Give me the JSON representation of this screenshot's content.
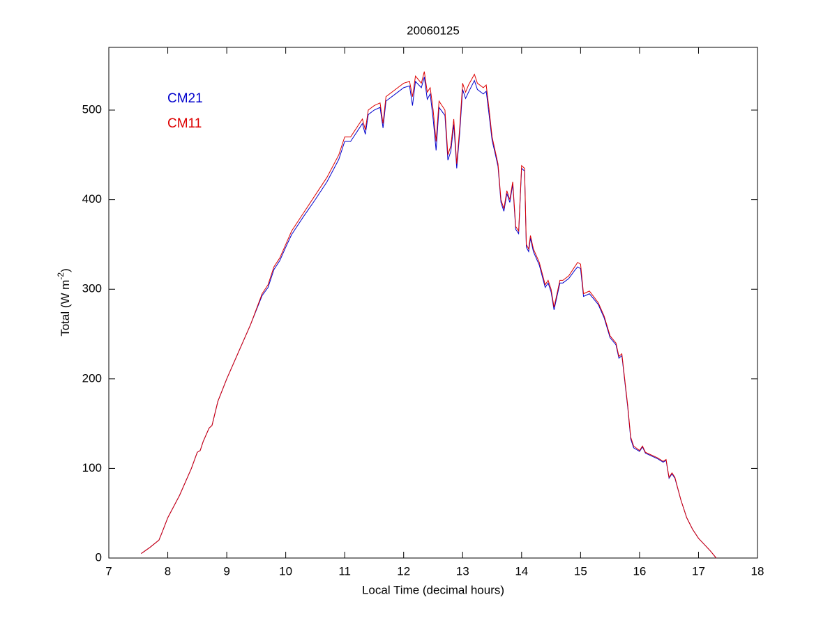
{
  "chart_data": {
    "type": "line",
    "title": "20060125",
    "xlabel": "Local Time (decimal hours)",
    "ylabel_parts": [
      "Total (W m",
      "-2",
      ")"
    ],
    "x": [
      7.55,
      7.7,
      7.85,
      7.9,
      8.0,
      8.2,
      8.4,
      8.5,
      8.55,
      8.6,
      8.7,
      8.75,
      8.85,
      9.0,
      9.2,
      9.4,
      9.6,
      9.7,
      9.8,
      9.9,
      10.0,
      10.1,
      10.3,
      10.5,
      10.7,
      10.9,
      11.0,
      11.1,
      11.2,
      11.3,
      11.35,
      11.4,
      11.5,
      11.6,
      11.65,
      11.7,
      11.9,
      12.0,
      12.1,
      12.15,
      12.2,
      12.3,
      12.35,
      12.4,
      12.45,
      12.5,
      12.55,
      12.6,
      12.7,
      12.75,
      12.8,
      12.85,
      12.9,
      12.95,
      13.0,
      13.05,
      13.1,
      13.2,
      13.25,
      13.35,
      13.4,
      13.45,
      13.5,
      13.55,
      13.6,
      13.65,
      13.7,
      13.75,
      13.8,
      13.85,
      13.9,
      13.95,
      14.0,
      14.05,
      14.08,
      14.12,
      14.15,
      14.2,
      14.3,
      14.4,
      14.45,
      14.5,
      14.55,
      14.65,
      14.7,
      14.8,
      14.9,
      14.95,
      15.0,
      15.05,
      15.15,
      15.3,
      15.4,
      15.5,
      15.6,
      15.65,
      15.7,
      15.8,
      15.85,
      15.9,
      16.0,
      16.05,
      16.1,
      16.2,
      16.3,
      16.4,
      16.45,
      16.5,
      16.55,
      16.6,
      16.7,
      16.8,
      16.9,
      17.0,
      17.1,
      17.2,
      17.3
    ],
    "series": [
      {
        "name": "CM21",
        "color": "#0000cc",
        "values": [
          5,
          12,
          20,
          28,
          45,
          70,
          100,
          118,
          120,
          130,
          145,
          148,
          175,
          200,
          230,
          260,
          293,
          302,
          322,
          332,
          347,
          361,
          381,
          400,
          420,
          445,
          465,
          465,
          475,
          485,
          473,
          495,
          500,
          503,
          480,
          510,
          520,
          525,
          527,
          505,
          532,
          525,
          537,
          512,
          518,
          490,
          455,
          503,
          494,
          444,
          454,
          484,
          435,
          474,
          523,
          513,
          520,
          533,
          523,
          518,
          521,
          494,
          466,
          452,
          437,
          397,
          387,
          407,
          397,
          417,
          367,
          362,
          435,
          432,
          347,
          342,
          357,
          342,
          327,
          302,
          307,
          297,
          277,
          307,
          307,
          312,
          321,
          325,
          323,
          292,
          295,
          283,
          268,
          246,
          238,
          223,
          226,
          168,
          133,
          123,
          119,
          124,
          117,
          114,
          111,
          107,
          109,
          89,
          94,
          89,
          65,
          45,
          32,
          22,
          15,
          8,
          0
        ]
      },
      {
        "name": "CM11",
        "color": "#dd0000",
        "values": [
          5,
          12,
          20,
          28,
          45,
          70,
          100,
          118,
          120,
          130,
          145,
          148,
          175,
          200,
          230,
          260,
          295,
          305,
          325,
          335,
          350,
          365,
          385,
          405,
          425,
          450,
          470,
          470,
          480,
          490,
          478,
          500,
          505,
          508,
          485,
          515,
          525,
          530,
          532,
          515,
          538,
          530,
          543,
          520,
          525,
          500,
          465,
          510,
          500,
          450,
          460,
          490,
          440,
          480,
          530,
          520,
          528,
          540,
          530,
          525,
          528,
          500,
          470,
          455,
          440,
          400,
          390,
          410,
          400,
          420,
          370,
          365,
          438,
          435,
          350,
          345,
          360,
          345,
          330,
          305,
          310,
          300,
          280,
          310,
          310,
          315,
          325,
          330,
          328,
          295,
          298,
          285,
          270,
          248,
          240,
          225,
          228,
          170,
          135,
          125,
          120,
          125,
          118,
          115,
          112,
          108,
          110,
          90,
          95,
          90,
          65,
          45,
          32,
          22,
          15,
          8,
          0
        ]
      }
    ],
    "xlim": [
      7,
      18
    ],
    "xticks": [
      7,
      8,
      9,
      10,
      11,
      12,
      13,
      14,
      15,
      16,
      17,
      18
    ],
    "ylim": [
      0,
      570
    ],
    "yticks": [
      0,
      100,
      200,
      300,
      400,
      500
    ],
    "grid": false,
    "legend": "upper left"
  }
}
